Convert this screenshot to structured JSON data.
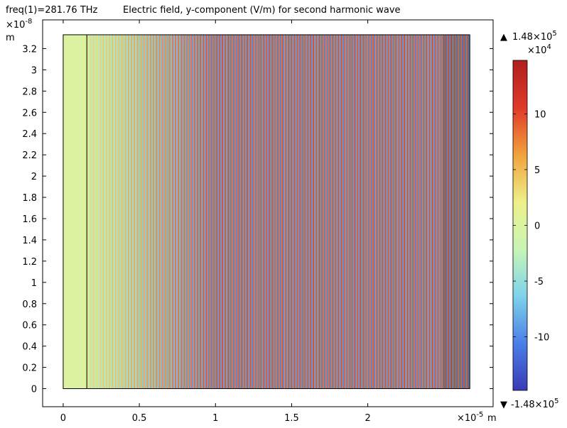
{
  "chart_data": {
    "type": "heatmap",
    "title": "Electric field, y-component (V/m) for second harmonic wave",
    "subtitle": "freq(1)=281.76 THz",
    "xlabel": "m",
    "ylabel": "m",
    "x_multiplier": "×10",
    "x_exponent": "-5",
    "y_multiplier": "×10",
    "y_exponent": "-8",
    "xlim": [
      -0.135,
      2.823
    ],
    "ylim": [
      -0.17,
      3.47
    ],
    "x_ticks": [
      0,
      0.5,
      1,
      1.5,
      2
    ],
    "x_tick_labels": [
      "0",
      "0.5",
      "1",
      "1.5",
      "2"
    ],
    "y_ticks": [
      0,
      0.2,
      0.4,
      0.6,
      0.8,
      1,
      1.2,
      1.4,
      1.6,
      1.8,
      2,
      2.2,
      2.4,
      2.6,
      2.8,
      3,
      3.2
    ],
    "y_tick_labels": [
      "0",
      "0.2",
      "0.4",
      "0.6",
      "0.8",
      "1",
      "1.2",
      "1.4",
      "1.6",
      "1.8",
      "2",
      "2.2",
      "2.4",
      "2.6",
      "2.8",
      "3",
      "3.2"
    ],
    "domain": {
      "x_min": 0,
      "x_max": 2.67,
      "y_min": 0,
      "y_max": 3.33,
      "interface_x": 0.155,
      "second_interface_x": 2.5
    },
    "field": {
      "pattern": "vertical stripes (field varies along x only)",
      "uniform_region_value_e4": 0,
      "stripe_start_x": 0.155,
      "stripe_period": 0.0206,
      "amplitude_start_e4": 4,
      "amplitude_end_e4": 14.8,
      "amplitude_growth_end_x": 1.0,
      "darkened_tail_start_x": 2.5
    },
    "colorbar": {
      "max_label": "1.48×10",
      "max_exp": "5",
      "min_label": "-1.48×10",
      "min_exp": "5",
      "scale_label": "×10",
      "scale_exp": "4",
      "range": [
        -14.8,
        14.8
      ],
      "ticks": [
        10,
        5,
        0,
        -5,
        -10
      ],
      "tick_labels": [
        "10",
        "5",
        "0",
        "-5",
        "-10"
      ],
      "colormap": "rainbow",
      "stops": [
        "#3a3ab6",
        "#4a7fe8",
        "#7fd3ea",
        "#c8f5b6",
        "#eef08a",
        "#f0a23c",
        "#e0392a",
        "#b01e1e"
      ],
      "max_marker": "▲",
      "min_marker": "▼"
    }
  }
}
